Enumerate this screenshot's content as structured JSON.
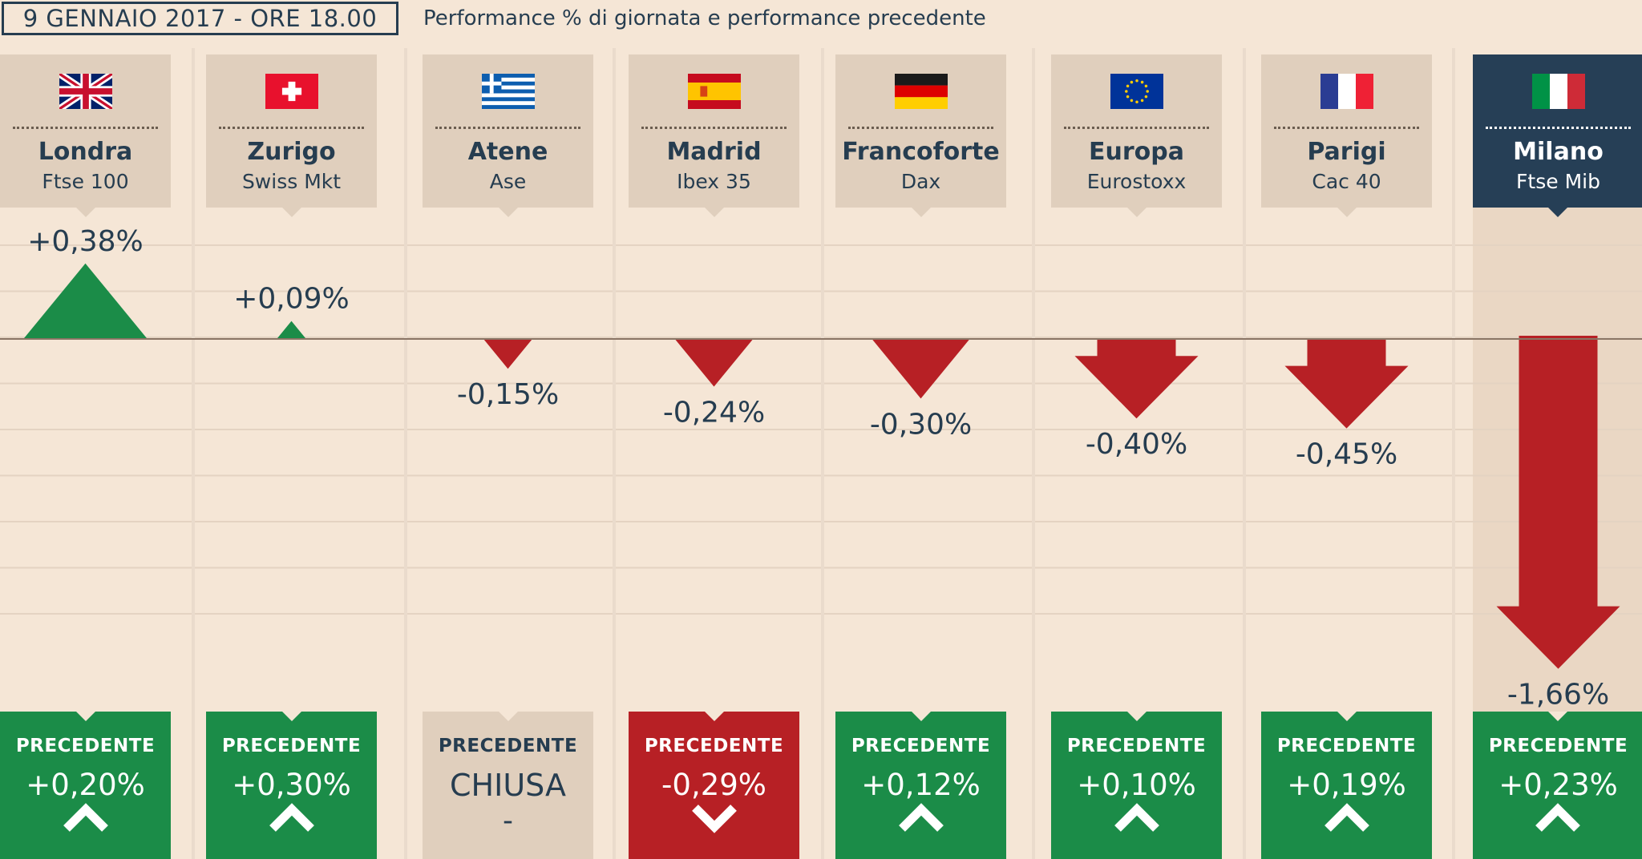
{
  "header": {
    "date_label": "9 GENNAIO 2017 - ORE 18.00",
    "subtitle": "Performance % di giornata e performance precedente"
  },
  "colors": {
    "background": "#f5e6d6",
    "header_box": "#e0cfbd",
    "highlight": "#263f56",
    "positive": "#1b8c48",
    "negative": "#b72025",
    "text": "#263d50"
  },
  "markets": [
    {
      "city": "Londra",
      "index": "Ftse 100",
      "flag": "uk-flag-icon",
      "change_label": "+0,38%",
      "prev_label": "PRECEDENTE",
      "prev_value": "+0,20%",
      "prev_trend": "up",
      "highlight": false
    },
    {
      "city": "Zurigo",
      "index": "Swiss Mkt",
      "flag": "switzerland-flag-icon",
      "change_label": "+0,09%",
      "prev_label": "PRECEDENTE",
      "prev_value": "+0,30%",
      "prev_trend": "up",
      "highlight": false
    },
    {
      "city": "Atene",
      "index": "Ase",
      "flag": "greece-flag-icon",
      "change_label": "-0,15%",
      "prev_label": "PRECEDENTE",
      "prev_value": "CHIUSA",
      "prev_extra": "-",
      "prev_trend": "closed",
      "highlight": false
    },
    {
      "city": "Madrid",
      "index": "Ibex 35",
      "flag": "spain-flag-icon",
      "change_label": "-0,24%",
      "prev_label": "PRECEDENTE",
      "prev_value": "-0,29%",
      "prev_trend": "down",
      "highlight": false
    },
    {
      "city": "Francoforte",
      "index": "Dax",
      "flag": "germany-flag-icon",
      "change_label": "-0,30%",
      "prev_label": "PRECEDENTE",
      "prev_value": "+0,12%",
      "prev_trend": "up",
      "highlight": false
    },
    {
      "city": "Europa",
      "index": "Eurostoxx",
      "flag": "eu-flag-icon",
      "change_label": "-0,40%",
      "prev_label": "PRECEDENTE",
      "prev_value": "+0,10%",
      "prev_trend": "up",
      "highlight": false
    },
    {
      "city": "Parigi",
      "index": "Cac 40",
      "flag": "france-flag-icon",
      "change_label": "-0,45%",
      "prev_label": "PRECEDENTE",
      "prev_value": "+0,19%",
      "prev_trend": "up",
      "highlight": false
    },
    {
      "city": "Milano",
      "index": "Ftse Mib",
      "flag": "italy-flag-icon",
      "change_label": "-1,66%",
      "prev_label": "PRECEDENTE",
      "prev_value": "+0,23%",
      "prev_trend": "up",
      "highlight": true
    }
  ],
  "chart_data": {
    "type": "bar",
    "title": "9 GENNAIO 2017 - ORE 18.00",
    "subtitle": "Performance % di giornata e performance precedente",
    "categories": [
      "Londra Ftse 100",
      "Zurigo Swiss Mkt",
      "Atene Ase",
      "Madrid Ibex 35",
      "Francoforte Dax",
      "Europa Eurostoxx",
      "Parigi Cac 40",
      "Milano Ftse Mib"
    ],
    "series": [
      {
        "name": "Performance % di giornata",
        "values": [
          0.38,
          0.09,
          -0.15,
          -0.24,
          -0.3,
          -0.4,
          -0.45,
          -1.66
        ]
      },
      {
        "name": "Performance precedente",
        "values": [
          0.2,
          0.3,
          null,
          -0.29,
          0.12,
          0.1,
          0.19,
          0.23
        ]
      }
    ],
    "ylim": [
      -1.75,
      0.45
    ],
    "grid": true,
    "xlabel": "",
    "ylabel": ""
  }
}
